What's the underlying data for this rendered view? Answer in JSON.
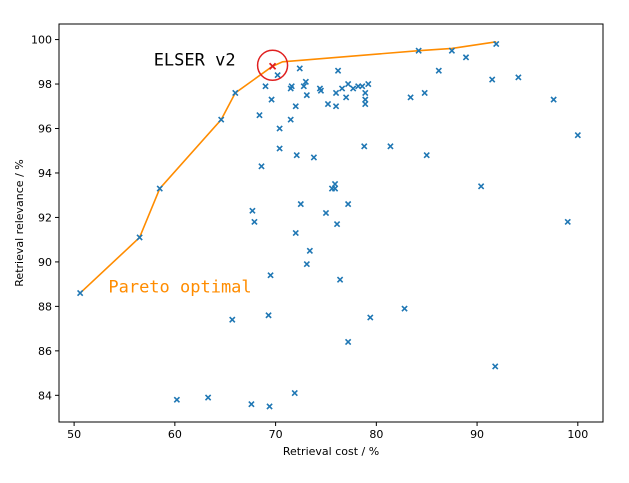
{
  "chart_data": {
    "type": "scatter",
    "title": "",
    "xlabel": "Retrieval cost / %",
    "ylabel": "Retrieval relevance / %",
    "xlim": [
      48.5,
      102.5
    ],
    "ylim": [
      82.8,
      100.7
    ],
    "xticks": [
      50,
      60,
      70,
      80,
      90,
      100
    ],
    "yticks": [
      84,
      86,
      88,
      90,
      92,
      94,
      96,
      98,
      100
    ],
    "grid": false,
    "colors": {
      "points": "#1f77b4",
      "pareto": "#ff8c00",
      "highlight": "#e02020"
    },
    "annotations": [
      {
        "text": "ELSER v2",
        "x": 57.9,
        "y": 99.1,
        "color": "#000000"
      },
      {
        "text": "Pareto optimal",
        "x": 53.4,
        "y": 88.9,
        "color": "#ff8c00"
      }
    ],
    "highlight": {
      "label": "ELSER v2",
      "x": 69.7,
      "y": 98.8
    },
    "pareto_front": {
      "x": [
        50.6,
        56.5,
        58.5,
        64.6,
        66.0,
        69.7,
        70.7,
        84.2,
        87.5,
        91.9
      ],
      "y": [
        88.6,
        91.1,
        93.3,
        96.4,
        97.6,
        98.8,
        99.0,
        99.5,
        99.6,
        99.9
      ]
    },
    "points": {
      "x": [
        50.6,
        56.5,
        58.5,
        64.6,
        66.0,
        69.0,
        69.6,
        70.2,
        72.4,
        68.4,
        70.4,
        71.5,
        71.6,
        72.0,
        71.5,
        72.8,
        73.0,
        73.1,
        74.4,
        74.5,
        75.2,
        76.0,
        76.2,
        76.0,
        76.6,
        77.0,
        77.2,
        77.7,
        78.2,
        78.6,
        78.9,
        78.9,
        78.9,
        79.2,
        70.4,
        72.1,
        73.8,
        78.8,
        81.4,
        83.4,
        84.2,
        84.8,
        85.0,
        86.2,
        87.5,
        88.9,
        91.9,
        91.5,
        94.1,
        97.6,
        100.0,
        68.6,
        90.4,
        99.0,
        67.7,
        67.9,
        72.5,
        75.0,
        75.6,
        75.9,
        75.9,
        77.2,
        76.1,
        72.0,
        73.4,
        73.1,
        69.5,
        76.4,
        65.7,
        69.3,
        79.4,
        82.8,
        77.2,
        91.8,
        71.9,
        60.2,
        63.3,
        67.6,
        69.4
      ],
      "y": [
        88.6,
        91.1,
        93.3,
        96.4,
        97.6,
        97.9,
        97.3,
        98.4,
        98.7,
        96.6,
        96.0,
        97.8,
        97.9,
        97.0,
        96.4,
        97.9,
        98.1,
        97.5,
        97.8,
        97.7,
        97.1,
        97.6,
        98.6,
        97.0,
        97.8,
        97.4,
        98.0,
        97.8,
        97.9,
        97.9,
        97.6,
        97.3,
        97.1,
        98.0,
        95.1,
        94.8,
        94.7,
        95.2,
        95.2,
        97.4,
        99.5,
        97.6,
        94.8,
        98.6,
        99.5,
        99.2,
        99.8,
        98.2,
        98.3,
        97.3,
        95.7,
        94.3,
        93.4,
        91.8,
        92.3,
        91.8,
        92.6,
        92.2,
        93.3,
        93.5,
        93.3,
        92.6,
        91.7,
        91.3,
        90.5,
        89.9,
        89.4,
        89.2,
        87.4,
        87.6,
        87.5,
        87.9,
        86.4,
        85.3,
        84.1,
        83.8,
        83.9,
        83.6,
        83.5
      ]
    }
  }
}
